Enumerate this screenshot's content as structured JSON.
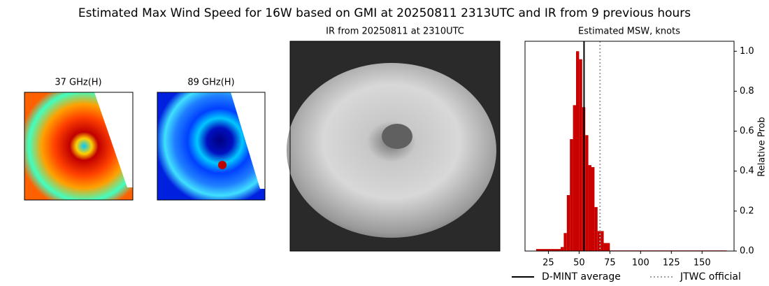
{
  "title": "Estimated Max Wind Speed for 16W based on GMI at 20250811 2313UTC and IR from 9 previous hours",
  "panels": [
    {
      "title": "37 GHz(H)"
    },
    {
      "title": "89 GHz(H)"
    },
    {
      "title": "IR from 20250811 at 2310UTC"
    }
  ],
  "chart_data": {
    "type": "histogram",
    "title": "Estimated MSW, knots",
    "y_label": "Relative Prob",
    "bins": [
      15,
      35,
      37.5,
      40,
      42.5,
      45,
      47.5,
      50,
      52.5,
      55,
      57.5,
      60,
      62.5,
      65,
      67.5,
      70,
      75,
      170
    ],
    "values": [
      0.01,
      0.02,
      0.09,
      0.28,
      0.56,
      0.73,
      1.0,
      0.96,
      0.72,
      0.58,
      0.43,
      0.42,
      0.22,
      0.1,
      0.1,
      0.04,
      0.003
    ],
    "color": "#c80000",
    "lines": [
      {
        "name": "D-MINT average",
        "color": "#000000",
        "style": "solid",
        "value": 54
      },
      {
        "name": "JTWC official",
        "color": "#a0a0a0",
        "style": "dotted",
        "value": 67
      }
    ],
    "xlim": [
      6,
      176
    ],
    "xticks": [
      25,
      50,
      75,
      100,
      125,
      150
    ],
    "ylim": [
      0,
      1.05
    ],
    "yticks": [
      {
        "value": 0,
        "label": "0.0"
      },
      {
        "value": 0.2,
        "label": "0.2"
      },
      {
        "value": 0.4,
        "label": "0.4"
      },
      {
        "value": 0.6,
        "label": "0.6"
      },
      {
        "value": 0.8,
        "label": "0.8"
      },
      {
        "value": 1.0,
        "label": "1.0"
      }
    ],
    "y_axis_side": "right",
    "legend": "bottom"
  }
}
